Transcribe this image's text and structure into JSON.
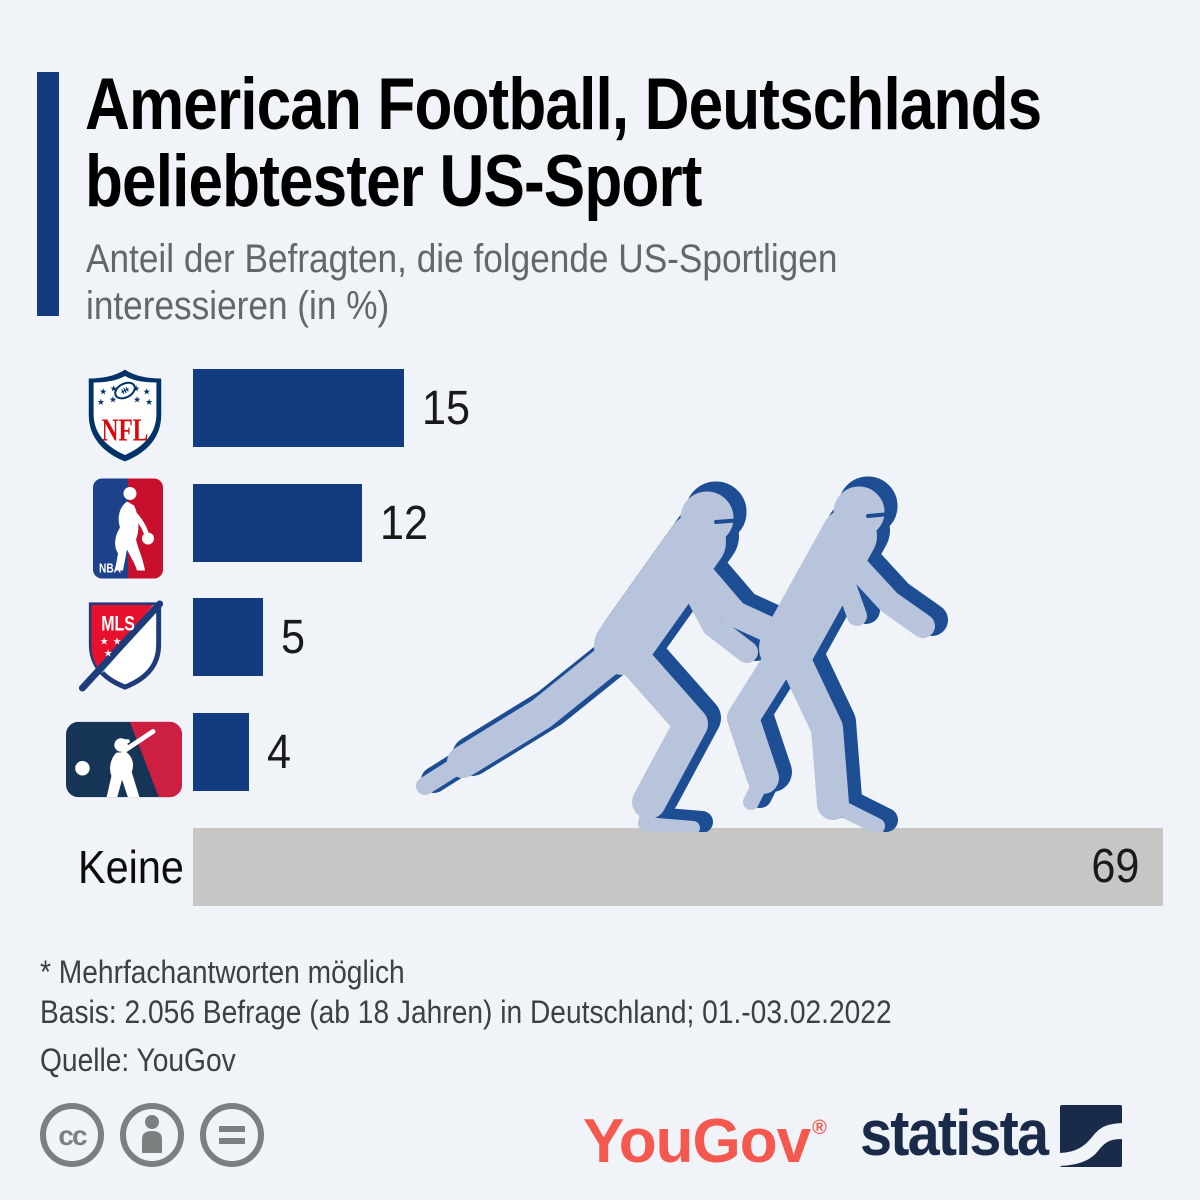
{
  "header": {
    "title_line1": "American Football, Deutschlands",
    "title_line2": "beliebtester US-Sport",
    "subtitle_line1": "Anteil der Befragten, die folgende US-Sportligen",
    "subtitle_line2": "interessieren (in %)"
  },
  "chart_data": {
    "type": "bar",
    "orientation": "horizontal",
    "title": "American Football, Deutschlands beliebtester US-Sport",
    "subtitle": "Anteil der Befragten, die folgende US-Sportligen interessieren (in %)",
    "categories": [
      "NFL",
      "NBA",
      "MLS",
      "MLB",
      "Keine"
    ],
    "values": [
      15,
      12,
      5,
      4,
      69
    ],
    "unit": "%",
    "xlim": [
      0,
      69
    ],
    "grid": false,
    "legend": "none",
    "bar_color": "#133c80",
    "keine_bar_color": "#c7c6c5",
    "value_labels": "outside end (inside end for Keine)"
  },
  "rows": [
    {
      "league": "NFL",
      "value": "15"
    },
    {
      "league": "NBA",
      "value": "12"
    },
    {
      "league": "MLS",
      "value": "5"
    },
    {
      "league": "MLB",
      "value": "4"
    },
    {
      "label": "Keine",
      "value": "69"
    }
  ],
  "logo_texts": {
    "nfl": "NFL",
    "nba": "NBA",
    "mls": "MLS"
  },
  "footnotes": {
    "line1": "* Mehrfachantworten möglich",
    "line2": "Basis: 2.056 Befrage (ab 18 Jahren) in Deutschland; 01.-03.02.2022",
    "line3": "Quelle: YouGov"
  },
  "branding": {
    "yougov": "YouGov",
    "yougov_reg": "®",
    "statista": "statista"
  },
  "colors": {
    "background": "#f0f3f8",
    "accent_and_bar_blue": "#133c80",
    "keine_gray": "#c7c6c5",
    "title_black": "#000000",
    "subtitle_gray": "#63666b",
    "footnote_gray": "#3d4043",
    "yougov_coral": "#f4584e",
    "statista_navy": "#1a2b49",
    "player_fill": "#b7c4dc",
    "player_outline": "#1d4d92",
    "cc_gray": "#7a8080"
  }
}
